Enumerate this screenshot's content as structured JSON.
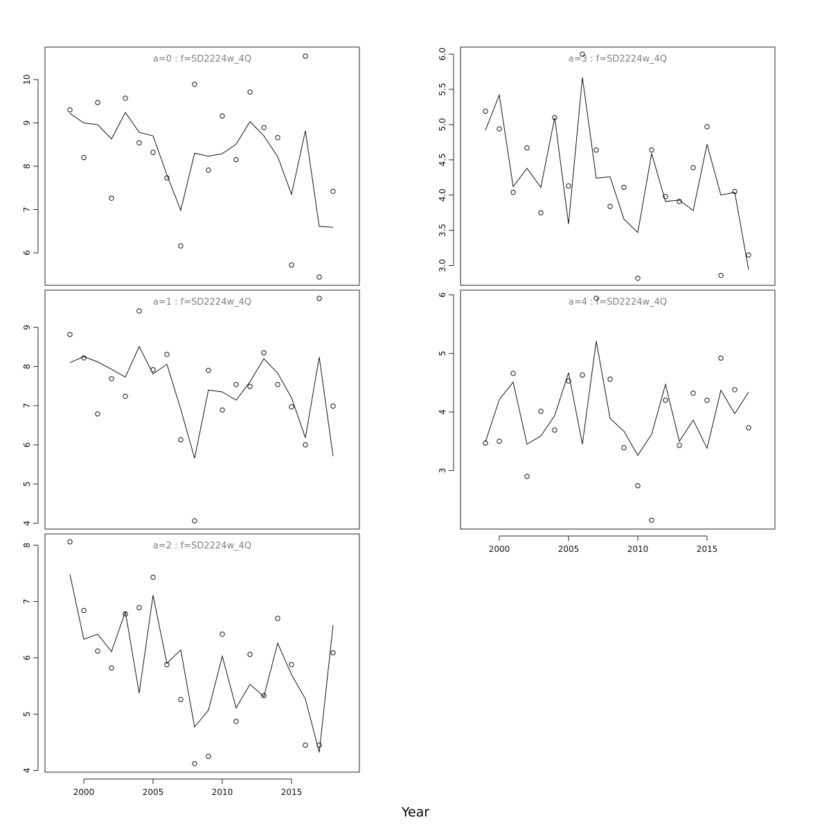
{
  "chart_data": {
    "type": "line",
    "xlabel": "Year",
    "x": [
      1999,
      2000,
      2001,
      2002,
      2003,
      2004,
      2005,
      2006,
      2007,
      2008,
      2009,
      2010,
      2011,
      2012,
      2013,
      2014,
      2015,
      2016,
      2017,
      2018
    ],
    "xlim": [
      1997.2,
      2019.9
    ],
    "xticks": [
      2000,
      2005,
      2010,
      2015
    ],
    "panels": [
      {
        "title": "a=0 : f=SD2224w_4Q",
        "ylim": [
          5.25,
          10.75
        ],
        "yticks": [
          6,
          7,
          8,
          9,
          10
        ],
        "series": [
          {
            "kind": "fitted-line",
            "values": [
              9.22,
              9.0,
              8.96,
              8.63,
              9.24,
              8.78,
              8.7,
              7.8,
              6.98,
              8.3,
              8.23,
              8.29,
              8.51,
              9.03,
              8.7,
              8.22,
              7.35,
              8.82,
              6.61,
              6.59
            ]
          },
          {
            "kind": "observed-points",
            "values": [
              9.3,
              8.2,
              9.47,
              7.26,
              9.57,
              8.54,
              8.32,
              7.73,
              6.16,
              9.89,
              7.91,
              9.16,
              8.15,
              9.71,
              8.89,
              8.66,
              5.72,
              10.54,
              5.44,
              7.42
            ]
          }
        ]
      },
      {
        "title": "a=1 : f=SD2224w_4Q",
        "ylim": [
          3.85,
          9.95
        ],
        "yticks": [
          4,
          5,
          6,
          7,
          8,
          9
        ],
        "series": [
          {
            "kind": "fitted-line",
            "values": [
              8.1,
              8.25,
              8.12,
              7.93,
              7.73,
              8.51,
              7.81,
              8.06,
              6.91,
              5.66,
              7.4,
              7.35,
              7.14,
              7.61,
              8.2,
              7.83,
              7.2,
              6.18,
              8.24,
              5.71
            ]
          },
          {
            "kind": "observed-points",
            "values": [
              8.82,
              8.22,
              6.79,
              7.69,
              7.24,
              9.42,
              7.92,
              8.31,
              6.13,
              4.06,
              7.9,
              6.89,
              7.54,
              7.49,
              8.35,
              7.54,
              6.97,
              6.0,
              9.74,
              6.99
            ]
          }
        ]
      },
      {
        "title": "a=2 : f=SD2224w_4Q",
        "ylim": [
          3.97,
          8.2
        ],
        "yticks": [
          4,
          5,
          6,
          7,
          8
        ],
        "series": [
          {
            "kind": "fitted-line",
            "values": [
              7.48,
              6.33,
              6.42,
              6.11,
              6.82,
              5.37,
              7.11,
              5.9,
              6.14,
              4.77,
              5.07,
              6.03,
              5.11,
              5.53,
              5.31,
              6.26,
              5.7,
              5.27,
              4.32,
              6.58
            ]
          },
          {
            "kind": "observed-points",
            "values": [
              8.06,
              6.84,
              6.12,
              5.82,
              6.78,
              6.89,
              7.43,
              5.88,
              5.26,
              4.12,
              4.25,
              6.42,
              4.87,
              6.06,
              5.33,
              6.7,
              5.88,
              4.45,
              4.45,
              6.09
            ]
          }
        ]
      },
      {
        "title": "a=3 : f=SD2224w_4Q",
        "ylim": [
          2.72,
          6.1
        ],
        "yticks": [
          3.0,
          3.5,
          4.0,
          4.5,
          5.0,
          5.5,
          6.0
        ],
        "ytick_labels": [
          "3.0",
          "3.5",
          "4.0",
          "4.5",
          "5.0",
          "5.5",
          "6.0"
        ],
        "series": [
          {
            "kind": "fitted-line",
            "values": [
              4.92,
              5.42,
              4.12,
              4.38,
              4.11,
              5.1,
              3.59,
              5.67,
              4.24,
              4.26,
              3.66,
              3.47,
              4.59,
              3.91,
              3.93,
              3.78,
              4.72,
              4.0,
              4.04,
              2.94
            ]
          },
          {
            "kind": "observed-points",
            "values": [
              5.19,
              4.94,
              4.04,
              4.67,
              3.75,
              5.1,
              4.13,
              6.0,
              4.64,
              3.84,
              4.11,
              2.82,
              4.64,
              3.98,
              3.91,
              4.39,
              4.97,
              2.86,
              4.05,
              3.15
            ]
          }
        ]
      },
      {
        "title": "a=4 : f=SD2224w_4Q",
        "ylim": [
          2.0,
          6.08
        ],
        "yticks": [
          3,
          4,
          5,
          6
        ],
        "series": [
          {
            "kind": "fitted-line",
            "values": [
              3.49,
              4.21,
              4.51,
              3.45,
              3.59,
              3.94,
              4.67,
              3.45,
              5.21,
              3.89,
              3.67,
              3.26,
              3.62,
              4.47,
              3.5,
              3.86,
              3.38,
              4.37,
              3.97,
              4.34
            ]
          },
          {
            "kind": "observed-points",
            "values": [
              3.47,
              3.5,
              4.66,
              2.9,
              4.01,
              3.69,
              4.53,
              4.63,
              5.94,
              4.56,
              3.39,
              2.74,
              2.15,
              4.2,
              3.43,
              4.32,
              4.2,
              4.92,
              4.38,
              3.73
            ]
          }
        ]
      }
    ]
  }
}
